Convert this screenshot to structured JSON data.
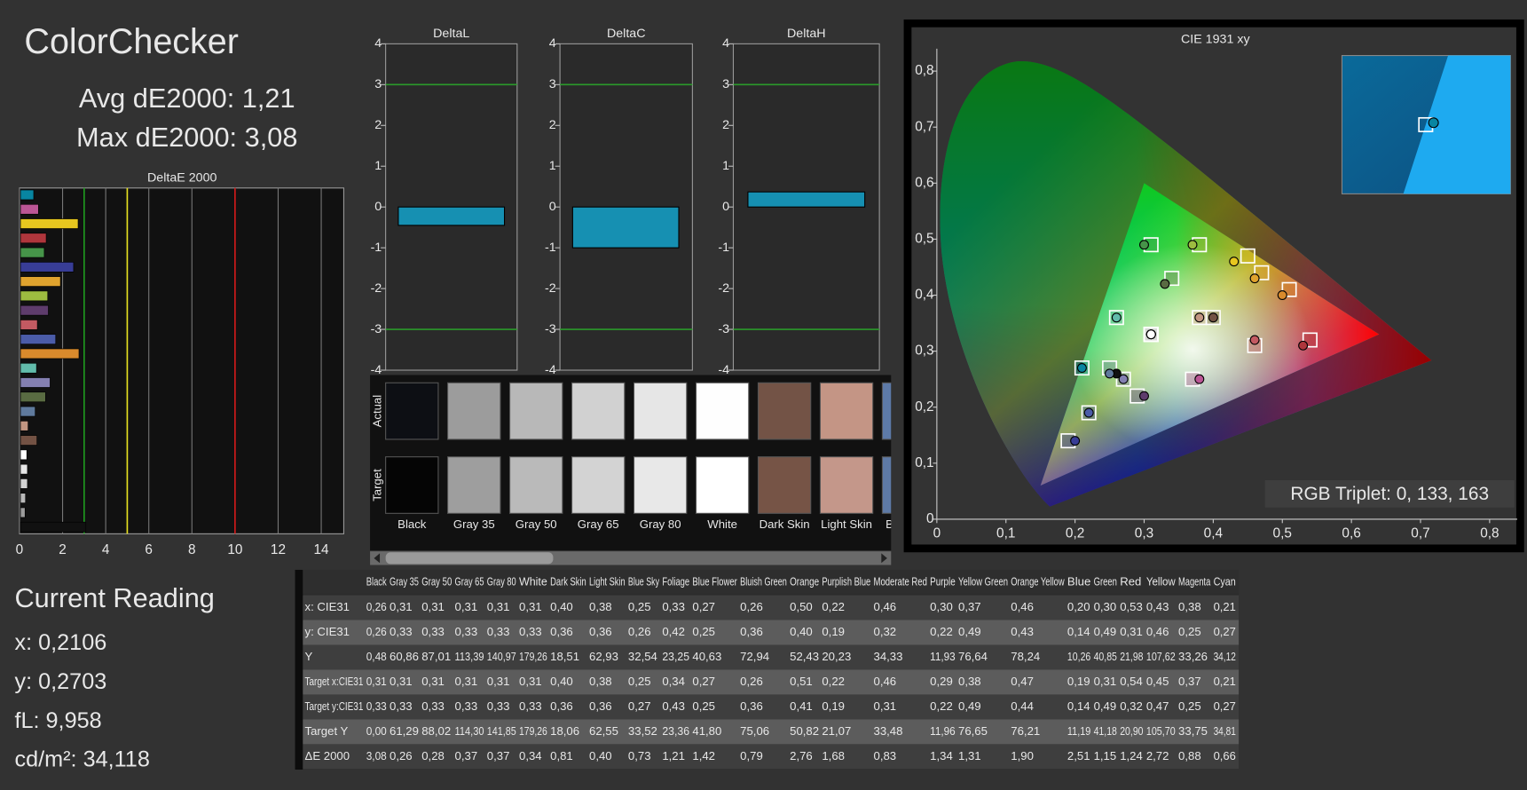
{
  "header": {
    "title": "ColorChecker",
    "avg": "Avg dE2000: 1,21",
    "max": "Max dE2000: 3,08"
  },
  "current_reading": {
    "title": "Current Reading",
    "x": "x: 0,2106",
    "y": "y: 0,2703",
    "fl": "fL: 9,958",
    "cd": "cd/m²: 34,118"
  },
  "chart_data": [
    {
      "type": "hbar",
      "title": "DeltaE 2000",
      "categories": [
        null,
        null,
        null,
        null,
        null,
        null,
        null,
        null,
        null,
        null,
        null,
        null,
        null,
        null,
        null,
        null,
        null,
        null,
        null,
        null,
        null,
        null,
        null,
        null
      ],
      "values": [
        3.08,
        0.26,
        0.28,
        0.37,
        0.37,
        0.34,
        0.81,
        0.4,
        0.73,
        1.21,
        1.42,
        0.79,
        2.76,
        1.68,
        0.83,
        1.34,
        1.31,
        1.9,
        2.51,
        1.15,
        1.24,
        2.72,
        0.88,
        0.66
      ],
      "colors": [
        "#111111",
        "#9c9c9c",
        "#b9b9b9",
        "#d2d2d2",
        "#e7e7e7",
        "#ffffff",
        "#735244",
        "#c29682",
        "#5f7a9d",
        "#596b42",
        "#8480b1",
        "#62bcab",
        "#d98a2c",
        "#4b5ca8",
        "#c35a62",
        "#5e3c6c",
        "#9dbc40",
        "#e0a32e",
        "#383d96",
        "#469449",
        "#af363c",
        "#e7c71f",
        "#bb5695",
        "#0885a1"
      ],
      "xlim": [
        0,
        15
      ],
      "xticks": [
        0,
        2,
        4,
        6,
        8,
        10,
        12,
        14
      ],
      "grid": true,
      "limit_lines": [
        {
          "value": 3,
          "color": "#1f9a1f"
        },
        {
          "value": 5,
          "color": "#e6e020"
        },
        {
          "value": 10,
          "color": "#d01818"
        }
      ]
    },
    {
      "type": "bar",
      "title": "DeltaL",
      "values": [
        -0.45
      ],
      "color": "#1690b2",
      "ylim": [
        -4,
        4
      ],
      "yticks": [
        -4,
        -3,
        -2,
        -1,
        0,
        1,
        2,
        3,
        4
      ],
      "limit_lines": [
        {
          "value": -3,
          "color": "#2a9a2a"
        },
        {
          "value": 3,
          "color": "#2a9a2a"
        }
      ]
    },
    {
      "type": "bar",
      "title": "DeltaC",
      "values": [
        -1.0
      ],
      "color": "#1690b2",
      "ylim": [
        -4,
        4
      ],
      "yticks": [
        -4,
        -3,
        -2,
        -1,
        0,
        1,
        2,
        3,
        4
      ],
      "limit_lines": [
        {
          "value": -3,
          "color": "#2a9a2a"
        },
        {
          "value": 3,
          "color": "#2a9a2a"
        }
      ]
    },
    {
      "type": "bar",
      "title": "DeltaH",
      "values": [
        0.37
      ],
      "color": "#1690b2",
      "ylim": [
        -4,
        4
      ],
      "yticks": [
        -4,
        -3,
        -2,
        -1,
        0,
        1,
        2,
        3,
        4
      ],
      "limit_lines": [
        {
          "value": -3,
          "color": "#2a9a2a"
        },
        {
          "value": 3,
          "color": "#2a9a2a"
        }
      ]
    },
    {
      "type": "scatter",
      "title": "CIE 1931 xy",
      "x": [
        0.26,
        0.31,
        0.31,
        0.31,
        0.31,
        0.31,
        0.4,
        0.38,
        0.25,
        0.33,
        0.27,
        0.26,
        0.5,
        0.22,
        0.46,
        0.3,
        0.37,
        0.46,
        0.2,
        0.3,
        0.53,
        0.43,
        0.38,
        0.21
      ],
      "y": [
        0.26,
        0.33,
        0.33,
        0.33,
        0.33,
        0.33,
        0.36,
        0.36,
        0.26,
        0.42,
        0.25,
        0.36,
        0.4,
        0.19,
        0.32,
        0.22,
        0.49,
        0.43,
        0.14,
        0.49,
        0.31,
        0.46,
        0.25,
        0.27
      ],
      "target_x": [
        0.31,
        0.31,
        0.31,
        0.31,
        0.31,
        0.31,
        0.4,
        0.38,
        0.25,
        0.34,
        0.27,
        0.26,
        0.51,
        0.22,
        0.46,
        0.29,
        0.38,
        0.47,
        0.19,
        0.31,
        0.54,
        0.45,
        0.37,
        0.21
      ],
      "target_y": [
        0.33,
        0.33,
        0.33,
        0.33,
        0.33,
        0.33,
        0.36,
        0.36,
        0.27,
        0.43,
        0.25,
        0.36,
        0.41,
        0.19,
        0.31,
        0.22,
        0.49,
        0.44,
        0.14,
        0.49,
        0.32,
        0.47,
        0.25,
        0.27
      ],
      "gamut": {
        "x": [
          0.64,
          0.3,
          0.15
        ],
        "y": [
          0.33,
          0.6,
          0.06
        ]
      },
      "xlim": [
        0,
        0.84
      ],
      "ylim": [
        0,
        0.84
      ],
      "xticks": [
        0,
        {
          "value": 0.1,
          "label": "0,1"
        },
        {
          "value": 0.2,
          "label": "0,2"
        },
        {
          "value": 0.3,
          "label": "0,3"
        },
        {
          "value": 0.4,
          "label": "0,4"
        },
        {
          "value": 0.5,
          "label": "0,5"
        },
        {
          "value": 0.6,
          "label": "0,6"
        },
        {
          "value": 0.7,
          "label": "0,7"
        },
        {
          "value": 0.8,
          "label": "0,8"
        }
      ],
      "yticks": [
        0,
        {
          "value": 0.1,
          "label": "0,1"
        },
        {
          "value": 0.2,
          "label": "0,2"
        },
        {
          "value": 0.3,
          "label": "0,3"
        },
        {
          "value": 0.4,
          "label": "0,4"
        },
        {
          "value": 0.5,
          "label": "0,5"
        },
        {
          "value": 0.6,
          "label": "0,6"
        },
        {
          "value": 0.7,
          "label": "0,7"
        },
        {
          "value": 0.8,
          "label": "0,8"
        }
      ],
      "annotation": "RGB Triplet: 0, 133, 163"
    }
  ],
  "swatches": {
    "row_labels": [
      "Actual",
      "Target"
    ],
    "actual_colors": [
      "#0d0f14",
      "#9c9c9c",
      "#b8b8b8",
      "#d1d1d1",
      "#e6e6e6",
      "#fefefe",
      "#735346",
      "#c49585",
      "#5d7aa8"
    ],
    "target_colors": [
      "#050505",
      "#9e9e9e",
      "#bababa",
      "#d3d3d3",
      "#e8e8e8",
      "#ffffff",
      "#765446",
      "#c4978a",
      "#5e7aa6"
    ]
  },
  "table": {
    "columns": [
      "Black",
      "Gray 35",
      "Gray 50",
      "Gray 65",
      "Gray 80",
      "White",
      "Dark Skin",
      "Light Skin",
      "Blue Sky",
      "Foliage",
      "Blue Flower",
      "Bluish Green",
      "Orange",
      "Purplish Blue",
      "Moderate Red",
      "Purple",
      "Yellow Green",
      "Orange Yellow",
      "Blue",
      "Green",
      "Red",
      "Yellow",
      "Magenta",
      "Cyan"
    ],
    "rows": [
      [
        "x: CIE31",
        "0,26",
        "0,31",
        "0,31",
        "0,31",
        "0,31",
        "0,31",
        "0,40",
        "0,38",
        "0,25",
        "0,33",
        "0,27",
        "0,26",
        "0,50",
        "0,22",
        "0,46",
        "0,30",
        "0,37",
        "0,46",
        "0,20",
        "0,30",
        "0,53",
        "0,43",
        "0,38",
        "0,21"
      ],
      [
        "y: CIE31",
        "0,26",
        "0,33",
        "0,33",
        "0,33",
        "0,33",
        "0,33",
        "0,36",
        "0,36",
        "0,26",
        "0,42",
        "0,25",
        "0,36",
        "0,40",
        "0,19",
        "0,32",
        "0,22",
        "0,49",
        "0,43",
        "0,14",
        "0,49",
        "0,31",
        "0,46",
        "0,25",
        "0,27"
      ],
      [
        "Y",
        "0,48",
        "60,86",
        "87,01",
        "113,39",
        "140,97",
        "179,26",
        "18,51",
        "62,93",
        "32,54",
        "23,25",
        "40,63",
        "72,94",
        "52,43",
        "20,23",
        "34,33",
        "11,93",
        "76,64",
        "78,24",
        "10,26",
        "40,85",
        "21,98",
        "107,62",
        "33,26",
        "34,12"
      ],
      [
        "Target x:CIE31",
        "0,31",
        "0,31",
        "0,31",
        "0,31",
        "0,31",
        "0,31",
        "0,40",
        "0,38",
        "0,25",
        "0,34",
        "0,27",
        "0,26",
        "0,51",
        "0,22",
        "0,46",
        "0,29",
        "0,38",
        "0,47",
        "0,19",
        "0,31",
        "0,54",
        "0,45",
        "0,37",
        "0,21"
      ],
      [
        "Target y:CIE31",
        "0,33",
        "0,33",
        "0,33",
        "0,33",
        "0,33",
        "0,33",
        "0,36",
        "0,36",
        "0,27",
        "0,43",
        "0,25",
        "0,36",
        "0,41",
        "0,19",
        "0,31",
        "0,22",
        "0,49",
        "0,44",
        "0,14",
        "0,49",
        "0,32",
        "0,47",
        "0,25",
        "0,27"
      ],
      [
        "Target Y",
        "0,00",
        "61,29",
        "88,02",
        "114,30",
        "141,85",
        "179,26",
        "18,06",
        "62,55",
        "33,52",
        "23,36",
        "41,80",
        "75,06",
        "50,82",
        "21,07",
        "33,48",
        "11,96",
        "76,65",
        "76,21",
        "11,19",
        "41,18",
        "20,90",
        "105,70",
        "33,75",
        "34,81"
      ],
      [
        "ΔE 2000",
        "3,08",
        "0,26",
        "0,28",
        "0,37",
        "0,37",
        "0,34",
        "0,81",
        "0,40",
        "0,73",
        "1,21",
        "1,42",
        "0,79",
        "2,76",
        "1,68",
        "0,83",
        "1,34",
        "1,31",
        "1,90",
        "2,51",
        "1,15",
        "1,24",
        "2,72",
        "0,88",
        "0,66"
      ]
    ]
  }
}
